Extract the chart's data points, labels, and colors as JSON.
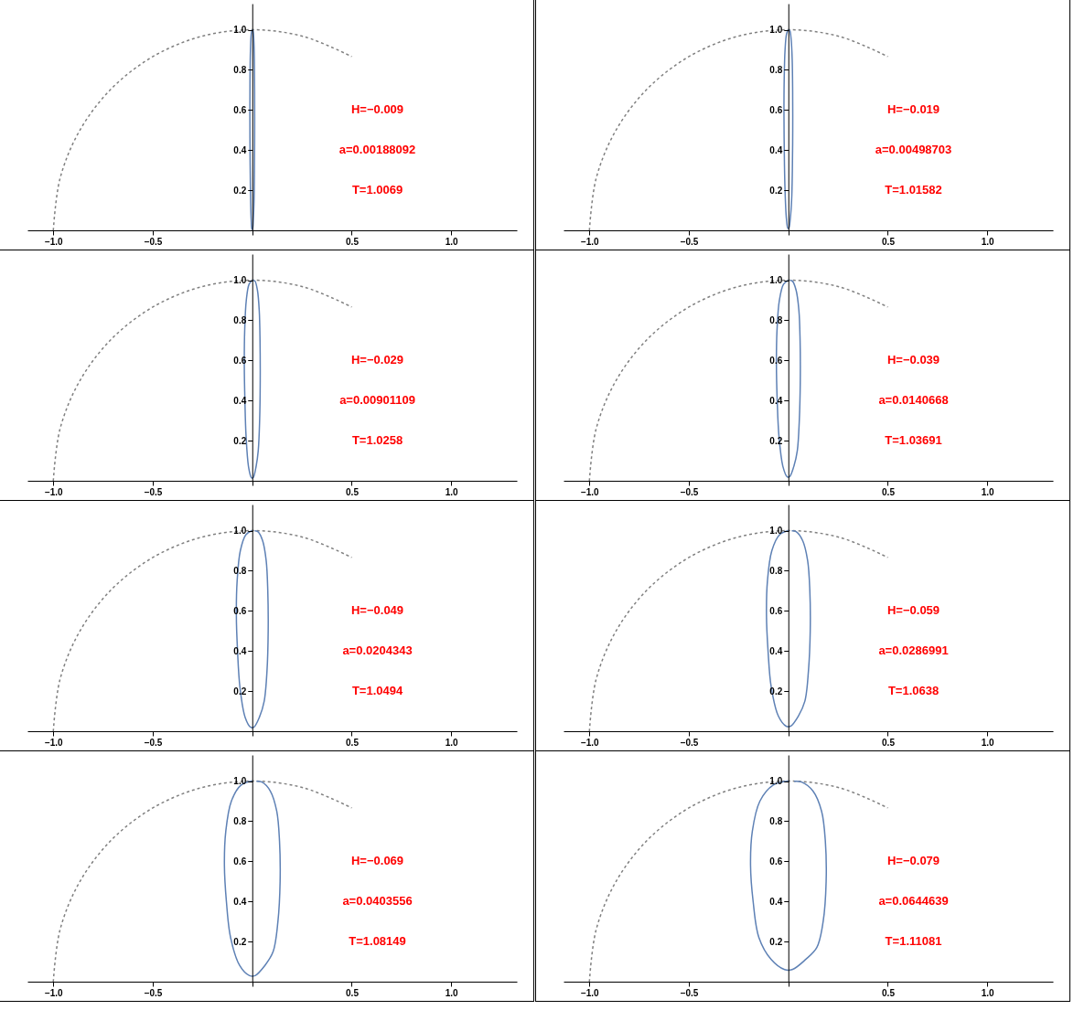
{
  "chart_data": [
    {
      "type": "line",
      "xlim": [
        -1.13,
        1.33
      ],
      "ylim": [
        0,
        1.13
      ],
      "xticks": [
        {
          "value": -1,
          "label": "−1.0"
        },
        {
          "value": -0.5,
          "label": "−0.5"
        },
        {
          "value": 0,
          "label": null
        },
        {
          "value": 0.5,
          "label": "0.5"
        },
        {
          "value": 1,
          "label": "1.0"
        }
      ],
      "yticks": [
        {
          "value": 0.2,
          "label": "0.2"
        },
        {
          "value": 0.4,
          "label": "0.4"
        },
        {
          "value": 0.6,
          "label": "0.6"
        },
        {
          "value": 0.8,
          "label": "0.8"
        },
        {
          "value": 1,
          "label": "1.0"
        }
      ],
      "annotations": [
        "H=−0.009",
        "a=0.00188092",
        "T=1.0069"
      ],
      "series": [
        {
          "color": "#808080",
          "line_style": "dashed",
          "x": [
            -1,
            -0.966,
            -0.866,
            -0.707,
            -0.5,
            -0.259,
            0,
            0.259,
            0.5
          ],
          "values": [
            0,
            0.259,
            0.5,
            0.707,
            0.866,
            0.966,
            1,
            0.966,
            0.866
          ]
        },
        {
          "color": "#5e81b5",
          "line_style": "solid",
          "x": [
            0,
            -0.0048,
            -0.009,
            -0.0114,
            -0.012,
            -0.0112,
            -0.0094,
            -0.0054,
            -0.0012,
            0.0012,
            0.0054,
            0.009,
            0.011,
            0.012,
            0.0118,
            0.0106,
            0.0078,
            0.0042,
            0.0018
          ],
          "values": [
            1,
            0.98,
            0.9,
            0.75,
            0.58,
            0.4,
            0.22,
            0.055,
            0.005,
            0.005,
            0.055,
            0.15,
            0.3,
            0.5,
            0.7,
            0.85,
            0.95,
            0.995,
            0.999
          ]
        }
      ]
    },
    {
      "type": "line",
      "xlim": [
        -1.13,
        1.33
      ],
      "ylim": [
        0,
        1.13
      ],
      "xticks": [
        {
          "value": -1,
          "label": "−1.0"
        },
        {
          "value": -0.5,
          "label": "−0.5"
        },
        {
          "value": 0,
          "label": null
        },
        {
          "value": 0.5,
          "label": "0.5"
        },
        {
          "value": 1,
          "label": "1.0"
        }
      ],
      "yticks": [
        {
          "value": 0.2,
          "label": "0.2"
        },
        {
          "value": 0.4,
          "label": "0.4"
        },
        {
          "value": 0.6,
          "label": "0.6"
        },
        {
          "value": 0.8,
          "label": "0.8"
        },
        {
          "value": 1,
          "label": "1.0"
        }
      ],
      "annotations": [
        "H=−0.019",
        "a=0.00498703",
        "T=1.01582"
      ],
      "series": [
        {
          "color": "#808080",
          "line_style": "dashed",
          "x": [
            -1,
            -0.966,
            -0.866,
            -0.707,
            -0.5,
            -0.259,
            0,
            0.259,
            0.5
          ],
          "values": [
            0,
            0.259,
            0.5,
            0.707,
            0.866,
            0.966,
            1,
            0.966,
            0.866
          ]
        },
        {
          "color": "#5e81b5",
          "line_style": "solid",
          "x": [
            0,
            -0.0088,
            -0.0165,
            -0.0209,
            -0.022,
            -0.0205,
            -0.0172,
            -0.0099,
            -0.0022,
            0.0022,
            0.0099,
            0.0165,
            0.0202,
            0.022,
            0.0216,
            0.0194,
            0.0143,
            0.0077,
            0.0033
          ],
          "values": [
            1,
            0.98,
            0.9,
            0.75,
            0.58,
            0.4,
            0.22,
            0.06,
            0.01,
            0.01,
            0.06,
            0.15,
            0.3,
            0.5,
            0.7,
            0.85,
            0.95,
            0.995,
            0.999
          ]
        }
      ]
    },
    {
      "type": "line",
      "xlim": [
        -1.13,
        1.33
      ],
      "ylim": [
        0,
        1.13
      ],
      "xticks": [
        {
          "value": -1,
          "label": "−1.0"
        },
        {
          "value": -0.5,
          "label": "−0.5"
        },
        {
          "value": 0,
          "label": null
        },
        {
          "value": 0.5,
          "label": "0.5"
        },
        {
          "value": 1,
          "label": "1.0"
        }
      ],
      "yticks": [
        {
          "value": 0.2,
          "label": "0.2"
        },
        {
          "value": 0.4,
          "label": "0.4"
        },
        {
          "value": 0.6,
          "label": "0.6"
        },
        {
          "value": 0.8,
          "label": "0.8"
        },
        {
          "value": 1,
          "label": "1.0"
        }
      ],
      "annotations": [
        "H=−0.029",
        "a=0.00901109",
        "T=1.0258"
      ],
      "series": [
        {
          "color": "#808080",
          "line_style": "dashed",
          "x": [
            -1,
            -0.966,
            -0.866,
            -0.707,
            -0.5,
            -0.259,
            0,
            0.259,
            0.5
          ],
          "values": [
            0,
            0.259,
            0.5,
            0.707,
            0.866,
            0.966,
            1,
            0.966,
            0.866
          ]
        },
        {
          "color": "#5e81b5",
          "line_style": "solid",
          "x": [
            0,
            -0.016,
            -0.03,
            -0.038,
            -0.04,
            -0.037,
            -0.031,
            -0.018,
            -0.004,
            0.004,
            0.018,
            0.03,
            0.037,
            0.04,
            0.039,
            0.035,
            0.026,
            0.014,
            0.006
          ],
          "values": [
            1,
            0.98,
            0.9,
            0.75,
            0.58,
            0.4,
            0.22,
            0.065,
            0.015,
            0.015,
            0.065,
            0.15,
            0.3,
            0.5,
            0.7,
            0.85,
            0.95,
            0.995,
            0.999
          ]
        }
      ]
    },
    {
      "type": "line",
      "xlim": [
        -1.13,
        1.33
      ],
      "ylim": [
        0,
        1.13
      ],
      "xticks": [
        {
          "value": -1,
          "label": "−1.0"
        },
        {
          "value": -0.5,
          "label": "−0.5"
        },
        {
          "value": 0,
          "label": null
        },
        {
          "value": 0.5,
          "label": "0.5"
        },
        {
          "value": 1,
          "label": "1.0"
        }
      ],
      "yticks": [
        {
          "value": 0.2,
          "label": "0.2"
        },
        {
          "value": 0.4,
          "label": "0.4"
        },
        {
          "value": 0.6,
          "label": "0.6"
        },
        {
          "value": 0.8,
          "label": "0.8"
        },
        {
          "value": 1,
          "label": "1.0"
        }
      ],
      "annotations": [
        "H=−0.039",
        "a=0.0140668",
        "T=1.03691"
      ],
      "series": [
        {
          "color": "#808080",
          "line_style": "dashed",
          "x": [
            -1,
            -0.966,
            -0.866,
            -0.707,
            -0.5,
            -0.259,
            0,
            0.259,
            0.5
          ],
          "values": [
            0,
            0.259,
            0.5,
            0.707,
            0.866,
            0.966,
            1,
            0.966,
            0.866
          ]
        },
        {
          "color": "#5e81b5",
          "line_style": "solid",
          "x": [
            0,
            -0.024,
            -0.045,
            -0.057,
            -0.06,
            -0.056,
            -0.047,
            -0.027,
            -0.006,
            0.006,
            0.027,
            0.045,
            0.055,
            0.06,
            0.059,
            0.053,
            0.039,
            0.021,
            0.009
          ],
          "values": [
            1,
            0.98,
            0.9,
            0.75,
            0.58,
            0.4,
            0.22,
            0.07,
            0.02,
            0.02,
            0.07,
            0.15,
            0.3,
            0.5,
            0.7,
            0.85,
            0.95,
            0.995,
            0.999
          ]
        }
      ]
    },
    {
      "type": "line",
      "xlim": [
        -1.13,
        1.33
      ],
      "ylim": [
        0,
        1.13
      ],
      "xticks": [
        {
          "value": -1,
          "label": "−1.0"
        },
        {
          "value": -0.5,
          "label": "−0.5"
        },
        {
          "value": 0,
          "label": null
        },
        {
          "value": 0.5,
          "label": "0.5"
        },
        {
          "value": 1,
          "label": "1.0"
        }
      ],
      "yticks": [
        {
          "value": 0.2,
          "label": "0.2"
        },
        {
          "value": 0.4,
          "label": "0.4"
        },
        {
          "value": 0.6,
          "label": "0.6"
        },
        {
          "value": 0.8,
          "label": "0.8"
        },
        {
          "value": 1,
          "label": "1.0"
        }
      ],
      "annotations": [
        "H=−0.049",
        "a=0.0204343",
        "T=1.0494"
      ],
      "series": [
        {
          "color": "#808080",
          "line_style": "dashed",
          "x": [
            -1,
            -0.966,
            -0.866,
            -0.707,
            -0.5,
            -0.259,
            0,
            0.259,
            0.5
          ],
          "values": [
            0,
            0.259,
            0.5,
            0.707,
            0.866,
            0.966,
            1,
            0.966,
            0.866
          ]
        },
        {
          "color": "#5e81b5",
          "line_style": "solid",
          "x": [
            0,
            -0.032,
            -0.06,
            -0.076,
            -0.08,
            -0.074,
            -0.062,
            -0.036,
            -0.008,
            0.008,
            0.036,
            0.06,
            0.074,
            0.08,
            0.078,
            0.07,
            0.052,
            0.028,
            0.012
          ],
          "values": [
            1,
            0.98,
            0.9,
            0.75,
            0.58,
            0.4,
            0.22,
            0.07,
            0.02,
            0.02,
            0.07,
            0.15,
            0.3,
            0.5,
            0.7,
            0.85,
            0.95,
            0.995,
            0.999
          ]
        }
      ]
    },
    {
      "type": "line",
      "xlim": [
        -1.13,
        1.33
      ],
      "ylim": [
        0,
        1.13
      ],
      "xticks": [
        {
          "value": -1,
          "label": "−1.0"
        },
        {
          "value": -0.5,
          "label": "−0.5"
        },
        {
          "value": 0,
          "label": null
        },
        {
          "value": 0.5,
          "label": "0.5"
        },
        {
          "value": 1,
          "label": "1.0"
        }
      ],
      "yticks": [
        {
          "value": 0.2,
          "label": "0.2"
        },
        {
          "value": 0.4,
          "label": "0.4"
        },
        {
          "value": 0.6,
          "label": "0.6"
        },
        {
          "value": 0.8,
          "label": "0.8"
        },
        {
          "value": 1,
          "label": "1.0"
        }
      ],
      "annotations": [
        "H=−0.059",
        "a=0.0286991",
        "T=1.0638"
      ],
      "series": [
        {
          "color": "#808080",
          "line_style": "dashed",
          "x": [
            -1,
            -0.966,
            -0.866,
            -0.707,
            -0.5,
            -0.259,
            0,
            0.259,
            0.5
          ],
          "values": [
            0,
            0.259,
            0.5,
            0.707,
            0.866,
            0.966,
            1,
            0.966,
            0.866
          ]
        },
        {
          "color": "#5e81b5",
          "line_style": "solid",
          "x": [
            0,
            -0.044,
            -0.083,
            -0.105,
            -0.11,
            -0.102,
            -0.086,
            -0.05,
            -0.011,
            0.011,
            0.05,
            0.083,
            0.101,
            0.11,
            0.108,
            0.097,
            0.072,
            0.039,
            0.017
          ],
          "values": [
            1,
            0.98,
            0.9,
            0.75,
            0.58,
            0.4,
            0.22,
            0.075,
            0.025,
            0.025,
            0.075,
            0.15,
            0.3,
            0.5,
            0.7,
            0.85,
            0.95,
            0.995,
            0.999
          ]
        }
      ]
    },
    {
      "type": "line",
      "xlim": [
        -1.13,
        1.33
      ],
      "ylim": [
        0,
        1.13
      ],
      "xticks": [
        {
          "value": -1,
          "label": "−1.0"
        },
        {
          "value": -0.5,
          "label": "−0.5"
        },
        {
          "value": 0,
          "label": null
        },
        {
          "value": 0.5,
          "label": "0.5"
        },
        {
          "value": 1,
          "label": "1.0"
        }
      ],
      "yticks": [
        {
          "value": 0.2,
          "label": "0.2"
        },
        {
          "value": 0.4,
          "label": "0.4"
        },
        {
          "value": 0.6,
          "label": "0.6"
        },
        {
          "value": 0.8,
          "label": "0.8"
        },
        {
          "value": 1,
          "label": "1.0"
        }
      ],
      "annotations": [
        "H=−0.069",
        "a=0.0403556",
        "T=1.08149"
      ],
      "series": [
        {
          "color": "#808080",
          "line_style": "dashed",
          "x": [
            -1,
            -0.966,
            -0.866,
            -0.707,
            -0.5,
            -0.259,
            0,
            0.259,
            0.5
          ],
          "values": [
            0,
            0.259,
            0.5,
            0.707,
            0.866,
            0.966,
            1,
            0.966,
            0.866
          ]
        },
        {
          "color": "#5e81b5",
          "line_style": "solid",
          "x": [
            0,
            -0.056,
            -0.105,
            -0.133,
            -0.14,
            -0.13,
            -0.109,
            -0.063,
            -0.014,
            0.014,
            0.063,
            0.105,
            0.129,
            0.14,
            0.137,
            0.123,
            0.091,
            0.049,
            0.021
          ],
          "values": [
            1,
            0.98,
            0.9,
            0.75,
            0.58,
            0.4,
            0.22,
            0.08,
            0.03,
            0.03,
            0.08,
            0.15,
            0.3,
            0.5,
            0.7,
            0.85,
            0.95,
            0.995,
            0.999
          ]
        }
      ]
    },
    {
      "type": "line",
      "xlim": [
        -1.13,
        1.33
      ],
      "ylim": [
        0,
        1.13
      ],
      "xticks": [
        {
          "value": -1,
          "label": "−1.0"
        },
        {
          "value": -0.5,
          "label": "−0.5"
        },
        {
          "value": 0,
          "label": null
        },
        {
          "value": 0.5,
          "label": "0.5"
        },
        {
          "value": 1,
          "label": "1.0"
        }
      ],
      "yticks": [
        {
          "value": 0.2,
          "label": "0.2"
        },
        {
          "value": 0.4,
          "label": "0.4"
        },
        {
          "value": 0.6,
          "label": "0.6"
        },
        {
          "value": 0.8,
          "label": "0.8"
        },
        {
          "value": 1,
          "label": "1.0"
        }
      ],
      "annotations": [
        "H=−0.079",
        "a=0.0644639",
        "T=1.11081"
      ],
      "series": [
        {
          "color": "#808080",
          "line_style": "dashed",
          "x": [
            -1,
            -0.966,
            -0.866,
            -0.707,
            -0.5,
            -0.259,
            0,
            0.259,
            0.5
          ],
          "values": [
            0,
            0.259,
            0.5,
            0.707,
            0.866,
            0.966,
            1,
            0.966,
            0.866
          ]
        },
        {
          "color": "#5e81b5",
          "line_style": "solid",
          "x": [
            0,
            -0.076,
            -0.143,
            -0.181,
            -0.19,
            -0.177,
            -0.148,
            -0.086,
            -0.019,
            0.019,
            0.086,
            0.143,
            0.175,
            0.19,
            0.186,
            0.167,
            0.124,
            0.067,
            0.029
          ],
          "values": [
            1,
            0.98,
            0.9,
            0.75,
            0.58,
            0.4,
            0.22,
            0.11,
            0.06,
            0.06,
            0.11,
            0.17,
            0.3,
            0.5,
            0.7,
            0.85,
            0.95,
            0.995,
            0.999
          ]
        }
      ]
    }
  ]
}
